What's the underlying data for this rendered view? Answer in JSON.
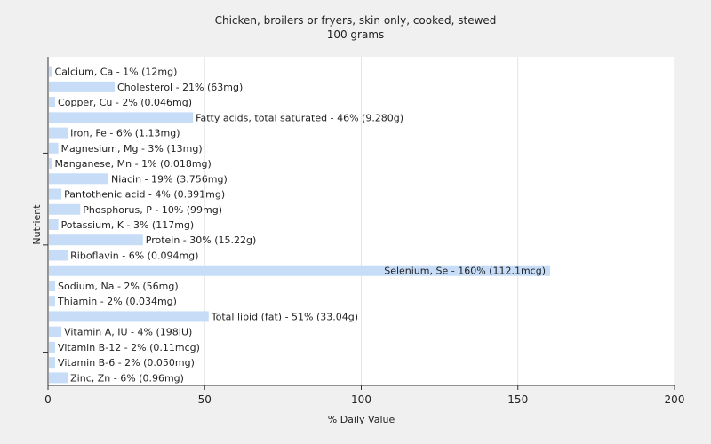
{
  "chart_data": {
    "type": "bar",
    "orientation": "horizontal",
    "title": "Chicken, broilers or fryers, skin only, cooked, stewed",
    "subtitle": "100 grams",
    "xlabel": "% Daily Value",
    "ylabel": "Nutrient",
    "xlim": [
      0,
      200
    ],
    "xticks": [
      0,
      50,
      100,
      150,
      200
    ],
    "grid": true,
    "bar_color": "#c6dcf7",
    "categories": [
      "Calcium, Ca",
      "Cholesterol",
      "Copper, Cu",
      "Fatty acids, total saturated",
      "Iron, Fe",
      "Magnesium, Mg",
      "Manganese, Mn",
      "Niacin",
      "Pantothenic acid",
      "Phosphorus, P",
      "Potassium, K",
      "Protein",
      "Riboflavin",
      "Selenium, Se",
      "Sodium, Na",
      "Thiamin",
      "Total lipid (fat)",
      "Vitamin A, IU",
      "Vitamin B-12",
      "Vitamin B-6",
      "Zinc, Zn"
    ],
    "values": [
      1,
      21,
      2,
      46,
      6,
      3,
      1,
      19,
      4,
      10,
      3,
      30,
      6,
      160,
      2,
      2,
      51,
      4,
      2,
      2,
      6
    ],
    "labels": [
      "Calcium, Ca - 1% (12mg)",
      "Cholesterol - 21% (63mg)",
      "Copper, Cu - 2% (0.046mg)",
      "Fatty acids, total saturated - 46% (9.280g)",
      "Iron, Fe - 6% (1.13mg)",
      "Magnesium, Mg - 3% (13mg)",
      "Manganese, Mn - 1% (0.018mg)",
      "Niacin - 19% (3.756mg)",
      "Pantothenic acid - 4% (0.391mg)",
      "Phosphorus, P - 10% (99mg)",
      "Potassium, K - 3% (117mg)",
      "Protein - 30% (15.22g)",
      "Riboflavin - 6% (0.094mg)",
      "Selenium, Se - 160% (112.1mcg)",
      "Sodium, Na - 2% (56mg)",
      "Thiamin - 2% (0.034mg)",
      "Total lipid (fat) - 51% (33.04g)",
      "Vitamin A, IU - 4% (198IU)",
      "Vitamin B-12 - 2% (0.11mcg)",
      "Vitamin B-6 - 2% (0.050mg)",
      "Zinc, Zn - 6% (0.96mg)"
    ]
  }
}
